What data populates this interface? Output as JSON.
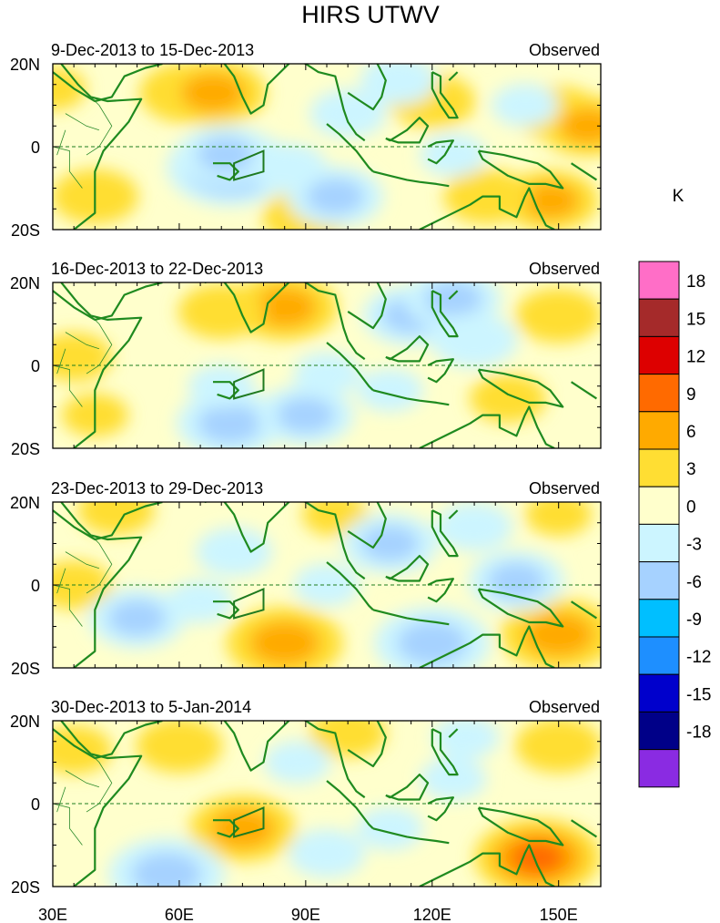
{
  "chart_data": {
    "type": "heatmap",
    "title": "HIRS UTWV",
    "colorbar": {
      "unit": "K",
      "levels": [
        "18",
        "15",
        "12",
        "9",
        "6",
        "3",
        "0",
        "-3",
        "-6",
        "-9",
        "-12",
        "-15",
        "-18"
      ],
      "colors": [
        "#ff6ec7",
        "#a52a2a",
        "#dd0000",
        "#ff6a00",
        "#ffaa00",
        "#ffde33",
        "#ffffcc",
        "#ccf5ff",
        "#a6d2ff",
        "#00bfff",
        "#1e8fff",
        "#0000cc",
        "#000088",
        "#8a2be2"
      ]
    },
    "y_axis": {
      "ticks": [
        "20N",
        "0",
        "20S"
      ],
      "range": [
        -20,
        20
      ]
    },
    "x_axis": {
      "ticks": [
        "30E",
        "60E",
        "90E",
        "120E",
        "150E"
      ],
      "range": [
        30,
        160
      ],
      "tick_values": [
        30,
        60,
        90,
        120,
        150
      ]
    },
    "panels": [
      {
        "date_range": "9-Dec-2013 to 15-Dec-2013",
        "label": "Observed",
        "anomaly_features": [
          {
            "lon": 62,
            "lat": 13,
            "value": 6
          },
          {
            "lon": 68,
            "lat": 13,
            "value": 7
          },
          {
            "lon": 90,
            "lat": -17,
            "value": 5
          },
          {
            "lon": 40,
            "lat": -12,
            "value": 5
          },
          {
            "lon": 120,
            "lat": 11,
            "value": 5
          },
          {
            "lon": 150,
            "lat": 8,
            "value": 5
          },
          {
            "lon": 157,
            "lat": 5,
            "value": 6
          },
          {
            "lon": 148,
            "lat": -13,
            "value": 6
          },
          {
            "lon": 133,
            "lat": -12,
            "value": 5
          },
          {
            "lon": 30,
            "lat": 14,
            "value": 3
          },
          {
            "lon": 72,
            "lat": -5,
            "value": -9
          },
          {
            "lon": 71,
            "lat": -2,
            "value": -6
          },
          {
            "lon": 86,
            "lat": -5,
            "value": -4
          },
          {
            "lon": 97,
            "lat": -12,
            "value": -6
          },
          {
            "lon": 100,
            "lat": 8,
            "value": -4
          },
          {
            "lon": 112,
            "lat": 16,
            "value": -4
          },
          {
            "lon": 142,
            "lat": 10,
            "value": -3
          },
          {
            "lon": 125,
            "lat": -2,
            "value": -3
          }
        ]
      },
      {
        "date_range": "16-Dec-2013 to 22-Dec-2013",
        "label": "Observed",
        "anomaly_features": [
          {
            "lon": 85,
            "lat": 14,
            "value": 7
          },
          {
            "lon": 70,
            "lat": 13,
            "value": 5
          },
          {
            "lon": 150,
            "lat": 12,
            "value": 5
          },
          {
            "lon": 35,
            "lat": 2,
            "value": 4
          },
          {
            "lon": 40,
            "lat": -12,
            "value": 3
          },
          {
            "lon": 138,
            "lat": -8,
            "value": 4
          },
          {
            "lon": 72,
            "lat": -14,
            "value": -7
          },
          {
            "lon": 90,
            "lat": -12,
            "value": -6
          },
          {
            "lon": 115,
            "lat": 12,
            "value": -6
          },
          {
            "lon": 125,
            "lat": 16,
            "value": -6
          },
          {
            "lon": 130,
            "lat": 6,
            "value": -5
          },
          {
            "lon": 110,
            "lat": -6,
            "value": -3
          },
          {
            "lon": 95,
            "lat": -2,
            "value": -3
          },
          {
            "lon": 70,
            "lat": -5,
            "value": -3
          }
        ]
      },
      {
        "date_range": "23-Dec-2013 to 29-Dec-2013",
        "label": "Observed",
        "anomaly_features": [
          {
            "lon": 85,
            "lat": -14,
            "value": 8
          },
          {
            "lon": 150,
            "lat": -12,
            "value": 8
          },
          {
            "lon": 45,
            "lat": 18,
            "value": 4
          },
          {
            "lon": 35,
            "lat": 0,
            "value": 4
          },
          {
            "lon": 97,
            "lat": 17,
            "value": 3
          },
          {
            "lon": 150,
            "lat": 17,
            "value": 3
          },
          {
            "lon": 120,
            "lat": -14,
            "value": -8
          },
          {
            "lon": 50,
            "lat": -8,
            "value": -6
          },
          {
            "lon": 110,
            "lat": 10,
            "value": -6
          },
          {
            "lon": 140,
            "lat": 1,
            "value": -6
          },
          {
            "lon": 130,
            "lat": 14,
            "value": -4
          },
          {
            "lon": 73,
            "lat": 8,
            "value": -4
          },
          {
            "lon": 95,
            "lat": 0,
            "value": -3
          },
          {
            "lon": 65,
            "lat": -4,
            "value": -3
          }
        ]
      },
      {
        "date_range": "30-Dec-2013 to 5-Jan-2014",
        "label": "Observed",
        "anomaly_features": [
          {
            "lon": 75,
            "lat": -6,
            "value": 7
          },
          {
            "lon": 145,
            "lat": -13,
            "value": 9
          },
          {
            "lon": 60,
            "lat": 14,
            "value": 5
          },
          {
            "lon": 150,
            "lat": 14,
            "value": 5
          },
          {
            "lon": 35,
            "lat": 13,
            "value": 4
          },
          {
            "lon": 100,
            "lat": 17,
            "value": 4
          },
          {
            "lon": 57,
            "lat": -17,
            "value": -8
          },
          {
            "lon": 95,
            "lat": -12,
            "value": -4
          },
          {
            "lon": 110,
            "lat": -6,
            "value": -3
          },
          {
            "lon": 88,
            "lat": 10,
            "value": -3
          },
          {
            "lon": 125,
            "lat": 6,
            "value": -3
          },
          {
            "lon": 128,
            "lat": 16,
            "value": -3
          }
        ]
      }
    ]
  }
}
